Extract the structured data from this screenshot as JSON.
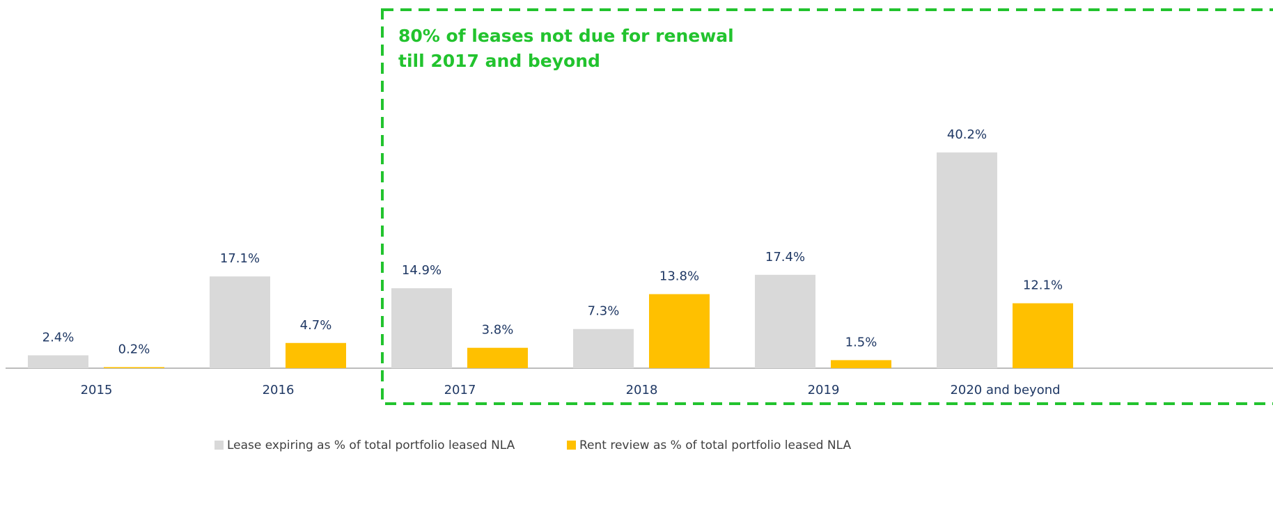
{
  "chart_data": {
    "type": "bar",
    "annotation": [
      "80% of leases not due for renewal",
      "till 2017 and beyond"
    ],
    "categories": [
      "2015",
      "2016",
      "2017",
      "2018",
      "2019",
      "2020 and beyond"
    ],
    "series": [
      {
        "name": "Lease expiring as % of total portfolio leased NLA",
        "color": "#d9d9d9",
        "values": [
          2.4,
          17.1,
          14.9,
          7.3,
          17.4,
          40.2
        ],
        "value_labels": [
          "2.4%",
          "17.1%",
          "14.9%",
          "7.3%",
          "17.4%",
          "40.2%"
        ]
      },
      {
        "name": "Rent review as % of total portfolio leased NLA",
        "color": "#ffc000",
        "values": [
          0.2,
          4.7,
          3.8,
          13.8,
          1.5,
          12.1
        ],
        "value_labels": [
          "0.2%",
          "4.7%",
          "3.8%",
          "13.8%",
          "1.5%",
          "12.1%"
        ]
      }
    ]
  }
}
